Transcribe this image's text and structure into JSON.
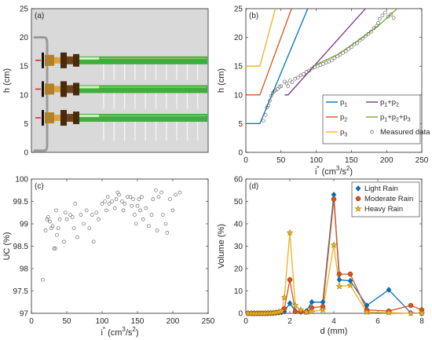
{
  "colors": {
    "blue": "#0072BD",
    "orange": "#D95319",
    "yellow": "#EDB120",
    "purple": "#7E2F8E",
    "green": "#77AC30",
    "pipe_green": "#3fae3a",
    "axis": "#262626"
  },
  "chart_data": [
    {
      "panel": "(a)",
      "type": "other",
      "ylabel": "h (cm)",
      "yticks": [
        "0",
        "5",
        "10",
        "15",
        "20",
        "25"
      ],
      "ylim": [
        0,
        25
      ],
      "emitter_heights": [
        6,
        11,
        16
      ],
      "dash_markers": [
        6,
        11,
        16
      ]
    },
    {
      "panel": "(b)",
      "type": "line",
      "xlabel": "i* (cm3/s2)",
      "xlabel_parts": {
        "main": "i",
        "sup": "*",
        "unit_open": " (cm",
        "unit_sup1": "3",
        "unit_mid": "/s",
        "unit_sup2": "2",
        "unit_close": ")"
      },
      "ylabel": "h (cm)",
      "xlim": [
        0,
        250
      ],
      "ylim": [
        0,
        25
      ],
      "xticks": [
        "0",
        "50",
        "100",
        "150",
        "200",
        "250"
      ],
      "yticks": [
        "0",
        "5",
        "10",
        "15",
        "20",
        "25"
      ],
      "legend": {
        "placement": "bottom-right",
        "entries": [
          {
            "label": "p1",
            "main": "p",
            "sub": "1",
            "color": "#0072BD",
            "symbol": "line"
          },
          {
            "label": "p1+p2",
            "main": "p",
            "sub": "1",
            "rest": "+p",
            "sub2": "2",
            "color": "#7E2F8E",
            "symbol": "line"
          },
          {
            "label": "p2",
            "main": "p",
            "sub": "2",
            "color": "#D95319",
            "symbol": "line"
          },
          {
            "label": "p1+p2+p3",
            "main": "p",
            "sub": "1",
            "rest": "+p",
            "sub2": "2",
            "rest2": "+p",
            "sub3": "3",
            "color": "#77AC30",
            "symbol": "line"
          },
          {
            "label": "p3",
            "main": "p",
            "sub": "3",
            "color": "#EDB120",
            "symbol": "line"
          },
          {
            "label": "Measured data",
            "color": "#555555",
            "symbol": "circle"
          }
        ]
      },
      "series": [
        {
          "name": "p1",
          "color": "#0072BD",
          "points": [
            [
              0,
              5
            ],
            [
              20,
              5
            ],
            [
              88,
              25
            ]
          ]
        },
        {
          "name": "p2",
          "color": "#D95319",
          "points": [
            [
              0,
              10
            ],
            [
              20,
              10
            ],
            [
              65,
              25
            ]
          ]
        },
        {
          "name": "p3",
          "color": "#EDB120",
          "points": [
            [
              0,
              15
            ],
            [
              20,
              15
            ],
            [
              42,
              25
            ]
          ]
        },
        {
          "name": "p1+p2",
          "color": "#7E2F8E",
          "points": [
            [
              55,
              10
            ],
            [
              60,
              10
            ],
            [
              170,
              25
            ]
          ]
        },
        {
          "name": "p1+p2+p3",
          "color": "#77AC30",
          "points": [
            [
              95,
              15
            ],
            [
              130,
              17
            ],
            [
              160,
              19.5
            ],
            [
              190,
              22.2
            ],
            [
              215,
              25
            ]
          ]
        }
      ],
      "measured": [
        [
          25,
          5.5
        ],
        [
          28,
          6.5
        ],
        [
          30,
          7.8
        ],
        [
          32,
          8.2
        ],
        [
          34,
          9.0
        ],
        [
          36,
          9.8
        ],
        [
          38,
          10.3
        ],
        [
          40,
          10.6
        ],
        [
          42,
          10.8
        ],
        [
          45,
          11.0
        ],
        [
          48,
          11.4
        ],
        [
          50,
          11.5
        ],
        [
          55,
          12.3
        ],
        [
          58,
          12.0
        ],
        [
          60,
          11.5
        ],
        [
          63,
          12.5
        ],
        [
          66,
          12.2
        ],
        [
          70,
          12.8
        ],
        [
          74,
          13.0
        ],
        [
          78,
          13.4
        ],
        [
          82,
          13.6
        ],
        [
          86,
          14.0
        ],
        [
          90,
          14.2
        ],
        [
          94,
          14.6
        ],
        [
          98,
          14.8
        ],
        [
          102,
          15.0
        ],
        [
          106,
          15.2
        ],
        [
          110,
          15.4
        ],
        [
          114,
          15.6
        ],
        [
          118,
          15.8
        ],
        [
          122,
          16.0
        ],
        [
          126,
          16.4
        ],
        [
          130,
          16.7
        ],
        [
          134,
          17.0
        ],
        [
          138,
          17.3
        ],
        [
          142,
          17.6
        ],
        [
          146,
          18.0
        ],
        [
          150,
          18.3
        ],
        [
          154,
          18.8
        ],
        [
          158,
          19.0
        ],
        [
          162,
          19.5
        ],
        [
          166,
          19.8
        ],
        [
          170,
          20.2
        ],
        [
          174,
          20.6
        ],
        [
          178,
          21.0
        ],
        [
          182,
          21.6
        ],
        [
          186,
          22.0
        ],
        [
          188,
          22.5
        ],
        [
          190,
          23.2
        ],
        [
          194,
          23.8
        ],
        [
          198,
          24.3
        ],
        [
          202,
          23.6
        ],
        [
          206,
          24.0
        ],
        [
          210,
          23.4
        ]
      ]
    },
    {
      "panel": "(c)",
      "type": "scatter",
      "xlabel": "i* (cm3/s2)",
      "xlabel_parts": {
        "main": "i",
        "sup": "*",
        "unit_open": " (cm",
        "unit_sup1": "3",
        "unit_mid": "/s",
        "unit_sup2": "2",
        "unit_close": ")"
      },
      "ylabel": "UC (%)",
      "xlim": [
        0,
        250
      ],
      "ylim": [
        97,
        100
      ],
      "xticks": [
        "0",
        "50",
        "100",
        "150",
        "200",
        "250"
      ],
      "yticks": [
        "97",
        "97.5",
        "98",
        "98.5",
        "99",
        "99.5",
        "100"
      ],
      "points": [
        [
          16,
          97.75
        ],
        [
          20,
          98.85
        ],
        [
          22,
          99.1
        ],
        [
          24,
          99.15
        ],
        [
          26,
          99.05
        ],
        [
          28,
          98.9
        ],
        [
          30,
          98.95
        ],
        [
          32,
          98.45
        ],
        [
          34,
          98.45
        ],
        [
          35,
          99.3
        ],
        [
          36,
          98.75
        ],
        [
          38,
          98.9
        ],
        [
          40,
          99.1
        ],
        [
          46,
          98.6
        ],
        [
          48,
          99.25
        ],
        [
          50,
          99.1
        ],
        [
          55,
          99.2
        ],
        [
          58,
          99.15
        ],
        [
          60,
          98.9
        ],
        [
          62,
          99.45
        ],
        [
          65,
          98.7
        ],
        [
          70,
          99.2
        ],
        [
          74,
          99.0
        ],
        [
          78,
          99.3
        ],
        [
          82,
          98.9
        ],
        [
          86,
          99.2
        ],
        [
          88,
          98.6
        ],
        [
          92,
          99.25
        ],
        [
          95,
          99.1
        ],
        [
          100,
          99.45
        ],
        [
          104,
          99.5
        ],
        [
          106,
          99.3
        ],
        [
          108,
          99.6
        ],
        [
          110,
          99.45
        ],
        [
          114,
          99.5
        ],
        [
          118,
          99.35
        ],
        [
          120,
          99.55
        ],
        [
          122,
          99.7
        ],
        [
          124,
          99.65
        ],
        [
          128,
          99.5
        ],
        [
          130,
          99.3
        ],
        [
          132,
          99.45
        ],
        [
          136,
          99.6
        ],
        [
          140,
          99.6
        ],
        [
          142,
          99.4
        ],
        [
          144,
          99.55
        ],
        [
          146,
          99.2
        ],
        [
          148,
          99.0
        ],
        [
          150,
          99.4
        ],
        [
          152,
          99.55
        ],
        [
          154,
          99.3
        ],
        [
          156,
          99.6
        ],
        [
          158,
          99.1
        ],
        [
          162,
          99.35
        ],
        [
          166,
          98.95
        ],
        [
          170,
          99.2
        ],
        [
          172,
          99.55
        ],
        [
          176,
          99.75
        ],
        [
          178,
          98.85
        ],
        [
          180,
          99.6
        ],
        [
          184,
          99.7
        ],
        [
          186,
          99.2
        ],
        [
          190,
          99.0
        ],
        [
          192,
          98.8
        ],
        [
          196,
          99.55
        ],
        [
          200,
          99.3
        ],
        [
          204,
          99.65
        ],
        [
          210,
          99.7
        ]
      ]
    },
    {
      "panel": "(d)",
      "type": "line",
      "xlabel": "d (mm)",
      "ylabel": "Volume (%)",
      "xlim": [
        0,
        8
      ],
      "ylim": [
        0,
        60
      ],
      "xticks": [
        "0",
        "2",
        "4",
        "6",
        "8"
      ],
      "yticks": [
        "0",
        "10",
        "20",
        "30",
        "40",
        "50",
        "60"
      ],
      "legend": {
        "placement": "top-right",
        "entries": [
          {
            "label": "Light Rain",
            "color": "#0072BD",
            "symbol": "diamond"
          },
          {
            "label": "Moderate Rain",
            "color": "#D95319",
            "symbol": "circle"
          },
          {
            "label": "Heavy Rain",
            "color": "#EDB120",
            "symbol": "star"
          }
        ]
      },
      "series": [
        {
          "name": "Light Rain",
          "color": "#0072BD",
          "marker": "diamond",
          "x": [
            0.1,
            0.25,
            0.375,
            0.5,
            0.625,
            0.75,
            0.875,
            1.0,
            1.125,
            1.25,
            1.375,
            1.5,
            1.625,
            1.75,
            2.0,
            2.25,
            2.5,
            2.75,
            3.0,
            3.5,
            4.0,
            4.25,
            4.75,
            5.5,
            6.5,
            7.5,
            8.0
          ],
          "y": [
            0,
            0,
            0,
            0,
            0,
            0,
            0,
            0,
            0.1,
            0.1,
            0.2,
            0.3,
            0.5,
            0.8,
            4.5,
            1.0,
            0.6,
            1.0,
            5.0,
            5.0,
            53.0,
            15.0,
            14.5,
            3.5,
            10.5,
            0.2,
            0
          ]
        },
        {
          "name": "Moderate Rain",
          "color": "#D95319",
          "marker": "circle",
          "x": [
            0.1,
            0.25,
            0.375,
            0.5,
            0.625,
            0.75,
            0.875,
            1.0,
            1.125,
            1.25,
            1.375,
            1.5,
            1.625,
            1.75,
            2.0,
            2.25,
            2.5,
            2.75,
            3.0,
            3.5,
            4.0,
            4.25,
            4.75,
            5.5,
            6.5,
            7.5,
            8.0
          ],
          "y": [
            0,
            0,
            0,
            0,
            0,
            0,
            0,
            0.1,
            0.1,
            0.2,
            0.3,
            0.5,
            0.8,
            2.0,
            15.0,
            0.8,
            0.7,
            0.6,
            2.5,
            3.0,
            51.0,
            17.5,
            17.5,
            1.5,
            1.0,
            3.5,
            1.5
          ]
        },
        {
          "name": "Heavy Rain",
          "color": "#EDB120",
          "marker": "star",
          "x": [
            0.1,
            0.25,
            0.375,
            0.5,
            0.625,
            0.75,
            0.875,
            1.0,
            1.125,
            1.25,
            1.375,
            1.5,
            1.625,
            1.75,
            2.0,
            2.25,
            2.5,
            2.75,
            3.0,
            3.5,
            4.0,
            4.25,
            4.75,
            5.5,
            6.5,
            7.5,
            8.0
          ],
          "y": [
            0,
            0,
            0,
            0,
            0,
            0,
            0,
            0.1,
            0.1,
            0.2,
            0.4,
            0.6,
            1.0,
            7.0,
            36.0,
            3.5,
            1.5,
            0.5,
            0.7,
            1.5,
            30.5,
            12.0,
            12.5,
            0.5,
            0.3,
            0,
            0
          ]
        }
      ]
    }
  ]
}
